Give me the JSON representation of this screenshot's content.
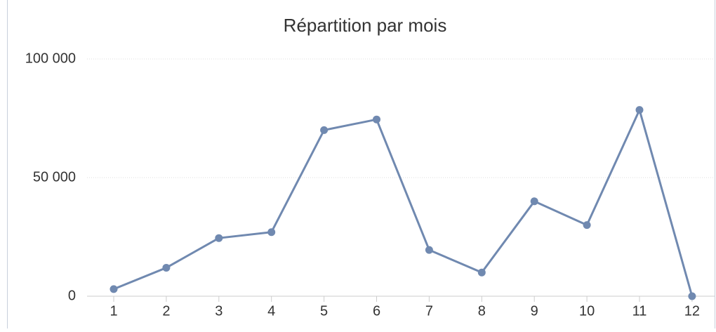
{
  "chart_data": {
    "type": "line",
    "title": "Répartition par mois",
    "categories": [
      "1",
      "2",
      "3",
      "4",
      "5",
      "6",
      "7",
      "8",
      "9",
      "10",
      "11",
      "12"
    ],
    "series": [
      {
        "name": "Répartition",
        "color": "#7089b0",
        "values": [
          3000,
          12000,
          24500,
          27000,
          70000,
          74500,
          19500,
          10000,
          40000,
          30000,
          78500,
          0
        ]
      }
    ],
    "ylim": [
      0,
      100000
    ],
    "yticks": [
      0,
      {
        "value": 50000,
        "label": "50 000"
      },
      {
        "value": 100000,
        "label": "100 000"
      }
    ],
    "grid": true
  }
}
